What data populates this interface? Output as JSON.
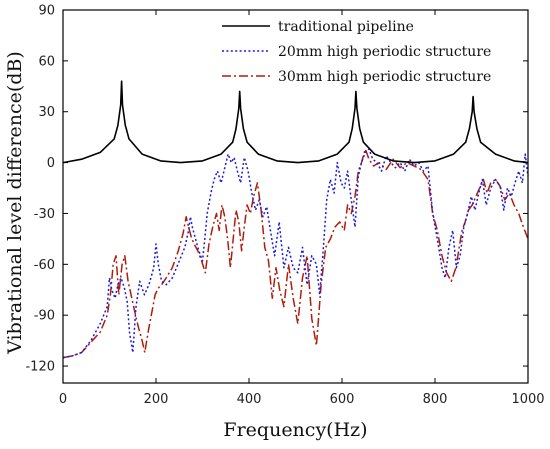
{
  "chart_data": {
    "type": "line",
    "xlabel": "Frequency(Hz)",
    "ylabel": "Vibrational level difference(dB)",
    "xlim": [
      0,
      1000
    ],
    "ylim": [
      -130,
      90
    ],
    "xticks": [
      0,
      200,
      400,
      600,
      800,
      1000
    ],
    "yticks": [
      -120,
      -90,
      -60,
      -30,
      0,
      30,
      60,
      90
    ],
    "xtick_labels": [
      "0",
      "200",
      "400",
      "600",
      "800",
      "1000"
    ],
    "ytick_labels": [
      "-120",
      "-90",
      "-60",
      "-30",
      "0",
      "30",
      "60",
      "90"
    ],
    "grid": false,
    "legend_position": "top-right",
    "series": [
      {
        "name": "traditional pipeline",
        "color": "#000000",
        "style": "solid",
        "peaks": [
          126,
          380,
          630,
          882
        ],
        "peak_values": [
          48,
          42,
          42,
          39
        ],
        "x": [
          0,
          40,
          80,
          110,
          118,
          124,
          126,
          128,
          134,
          142,
          170,
          210,
          253,
          300,
          340,
          365,
          372,
          378,
          380,
          382,
          388,
          396,
          420,
          460,
          505,
          550,
          590,
          615,
          622,
          628,
          630,
          632,
          638,
          646,
          670,
          710,
          756,
          800,
          840,
          866,
          874,
          880,
          882,
          884,
          890,
          898,
          930,
          970,
          1000
        ],
        "y": [
          0,
          2,
          6,
          14,
          22,
          34,
          48,
          34,
          22,
          14,
          5,
          1,
          0,
          1,
          5,
          12,
          20,
          32,
          42,
          32,
          20,
          12,
          5,
          1,
          0,
          1,
          5,
          12,
          20,
          32,
          42,
          32,
          20,
          12,
          5,
          1,
          0,
          1,
          5,
          12,
          20,
          30,
          39,
          30,
          20,
          12,
          5,
          1,
          0
        ]
      },
      {
        "name": "20mm high periodic structure",
        "color": "#1a1adc",
        "style": "dotted",
        "x": [
          0,
          20,
          40,
          60,
          80,
          95,
          100,
          105,
          112,
          118,
          125,
          132,
          138,
          143,
          150,
          157,
          165,
          175,
          185,
          195,
          200,
          205,
          212,
          222,
          235,
          250,
          262,
          270,
          274,
          278,
          285,
          292,
          300,
          305,
          310,
          318,
          325,
          332,
          340,
          348,
          355,
          362,
          368,
          375,
          382,
          390,
          398,
          406,
          414,
          422,
          430,
          438,
          446,
          455,
          465,
          475,
          485,
          495,
          505,
          515,
          525,
          535,
          545,
          552,
          560,
          567,
          575,
          583,
          590,
          598,
          605,
          612,
          620,
          628,
          635,
          642,
          650,
          658,
          666,
          675,
          685,
          695,
          705,
          715,
          725,
          735,
          745,
          755,
          765,
          775,
          785,
          795,
          805,
          815,
          822,
          830,
          838,
          846,
          854,
          862,
          870,
          878,
          886,
          894,
          902,
          910,
          920,
          930,
          940,
          948,
          956,
          964,
          972,
          980,
          988,
          994,
          1000
        ],
        "y": [
          -115,
          -114,
          -112,
          -105,
          -95,
          -85,
          -68,
          -75,
          -80,
          -72,
          -68,
          -74,
          -82,
          -100,
          -112,
          -85,
          -70,
          -78,
          -72,
          -62,
          -48,
          -60,
          -70,
          -72,
          -68,
          -58,
          -50,
          -40,
          -32,
          -38,
          -45,
          -52,
          -58,
          -45,
          -30,
          -18,
          -10,
          -5,
          -12,
          -3,
          5,
          0,
          3,
          -5,
          -12,
          3,
          -5,
          -18,
          -28,
          -22,
          -32,
          -26,
          -40,
          -55,
          -35,
          -62,
          -50,
          -62,
          -65,
          -50,
          -72,
          -55,
          -60,
          -78,
          -50,
          -22,
          -10,
          -18,
          0,
          -12,
          -15,
          -5,
          -22,
          -38,
          -8,
          0,
          6,
          8,
          2,
          0,
          -5,
          4,
          0,
          -3,
          0,
          -5,
          2,
          -2,
          0,
          -5,
          -2,
          -30,
          -45,
          -62,
          -68,
          -50,
          -40,
          -62,
          -55,
          -38,
          -30,
          -20,
          -28,
          -18,
          -10,
          -25,
          -15,
          -10,
          -14,
          -28,
          -15,
          -20,
          -12,
          -5,
          -12,
          5,
          -8
        ]
      },
      {
        "name": "30mm high periodic structure",
        "color": "#b01c0c",
        "style": "dashdot",
        "x": [
          0,
          20,
          40,
          60,
          80,
          95,
          102,
          108,
          114,
          120,
          127,
          133,
          140,
          148,
          156,
          163,
          170,
          176,
          183,
          190,
          198,
          205,
          212,
          222,
          235,
          248,
          258,
          265,
          270,
          276,
          282,
          290,
          298,
          306,
          314,
          322,
          330,
          336,
          342,
          348,
          354,
          360,
          366,
          372,
          378,
          384,
          390,
          396,
          403,
          410,
          418,
          426,
          434,
          442,
          450,
          458,
          466,
          475,
          485,
          495,
          505,
          515,
          525,
          535,
          545,
          555,
          565,
          575,
          585,
          595,
          605,
          612,
          620,
          628,
          635,
          642,
          650,
          658,
          668,
          680,
          695,
          710,
          725,
          740,
          755,
          770,
          785,
          795,
          805,
          815,
          825,
          835,
          845,
          852,
          858,
          865,
          872,
          880,
          888,
          896,
          904,
          912,
          920,
          930,
          940,
          950,
          960,
          970,
          980,
          990,
          1000
        ],
        "y": [
          -115,
          -114,
          -112,
          -106,
          -100,
          -90,
          -78,
          -60,
          -55,
          -78,
          -60,
          -55,
          -70,
          -80,
          -90,
          -98,
          -105,
          -112,
          -100,
          -90,
          -78,
          -74,
          -72,
          -68,
          -62,
          -52,
          -42,
          -32,
          -38,
          -44,
          -48,
          -52,
          -58,
          -65,
          -48,
          -38,
          -30,
          -40,
          -25,
          -32,
          -45,
          -62,
          -45,
          -28,
          -35,
          -52,
          -38,
          -25,
          -30,
          -20,
          -12,
          -28,
          -50,
          -58,
          -80,
          -62,
          -75,
          -85,
          -60,
          -80,
          -95,
          -68,
          -55,
          -92,
          -108,
          -72,
          -50,
          -45,
          -38,
          -35,
          -40,
          -25,
          -30,
          -20,
          -5,
          0,
          8,
          2,
          -2,
          0,
          -4,
          2,
          -3,
          0,
          -2,
          -4,
          -10,
          -30,
          -40,
          -55,
          -65,
          -70,
          -62,
          -50,
          -40,
          -35,
          -28,
          -25,
          -20,
          -15,
          -10,
          -18,
          -12,
          -10,
          -14,
          -22,
          -18,
          -25,
          -30,
          -38,
          -45
        ]
      }
    ]
  }
}
